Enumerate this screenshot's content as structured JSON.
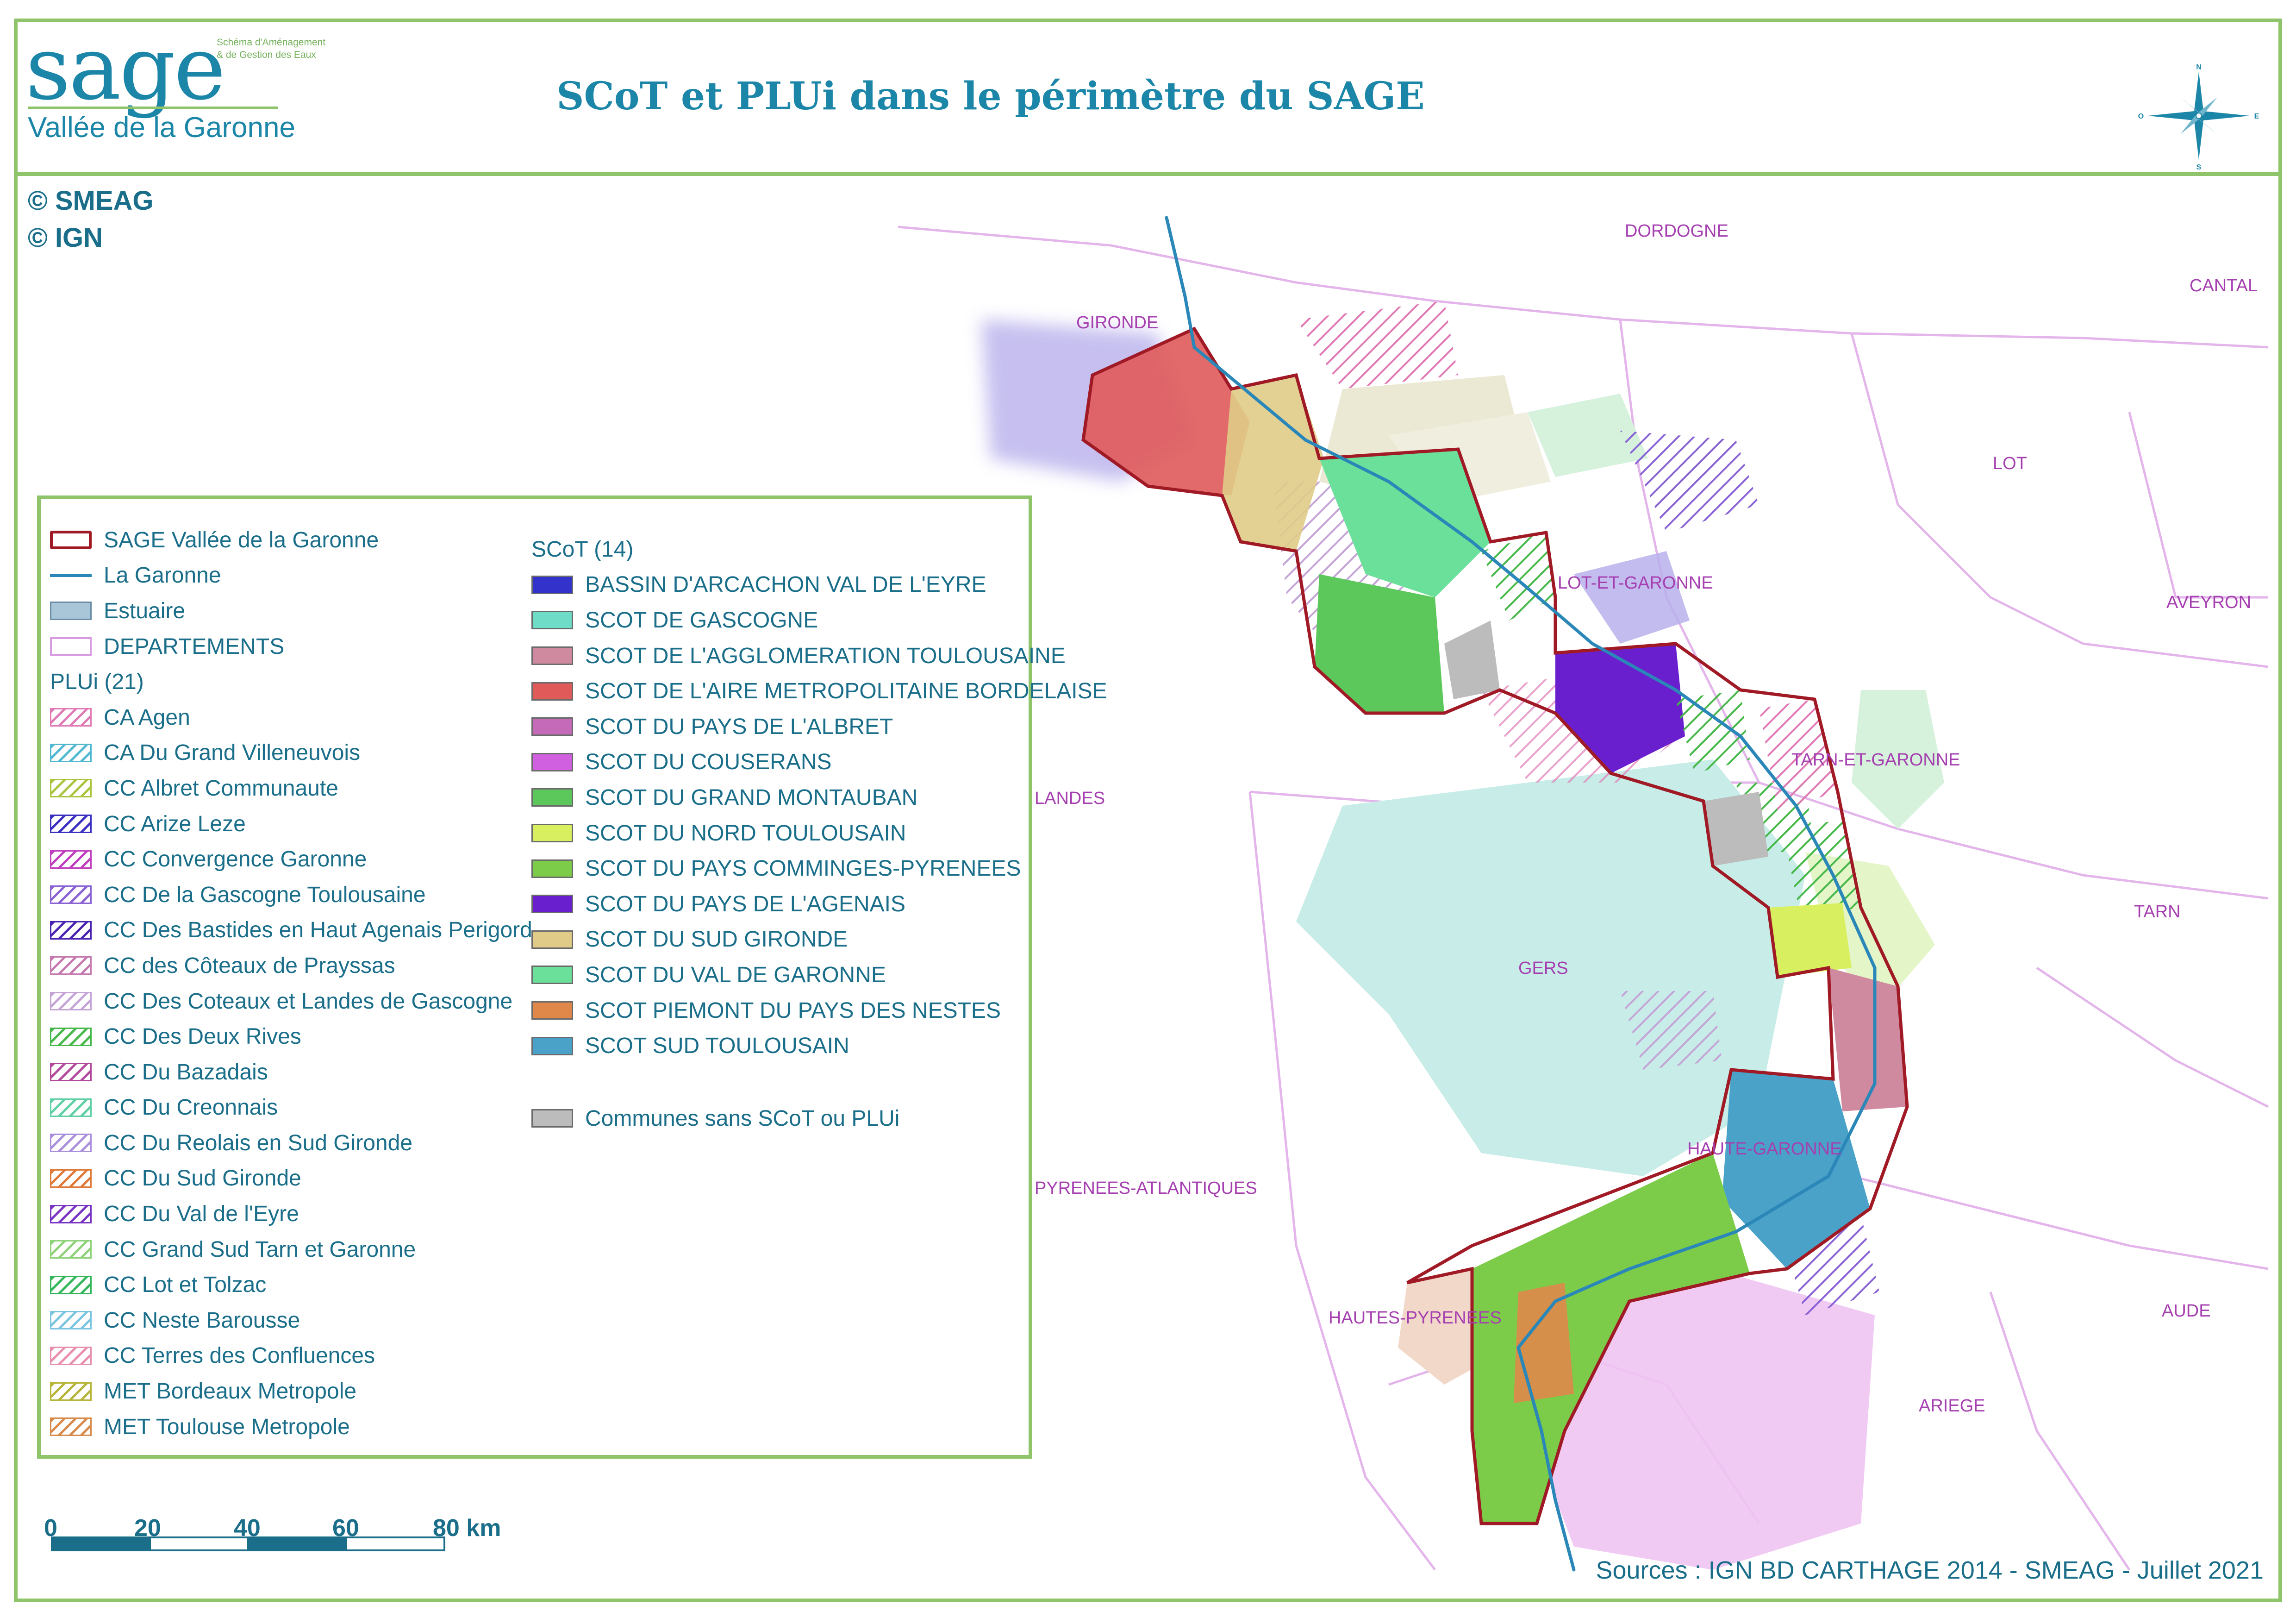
{
  "header": {
    "logo_word": "sage",
    "logo_subtitle": "Schéma d'Aménagement & de Gestion des Eaux",
    "logo_valley": "Vallée de la Garonne",
    "title": "SCoT et PLUi dans le périmètre du SAGE"
  },
  "compass": {
    "n": "N",
    "s": "S",
    "e": "E",
    "w": "O"
  },
  "copyrights": [
    "© SMEAG",
    "© IGN"
  ],
  "departments": [
    "DORDOGNE",
    "CANTAL",
    "GIRONDE",
    "LOT",
    "LOT-ET-GARONNE",
    "AVEYRON",
    "TARN-ET-GARONNE",
    "LANDES",
    "TARN",
    "GERS",
    "HAUTE-GARONNE",
    "PYRENEES-ATLANTIQUES",
    "HAUTES-PYRENEES",
    "AUDE",
    "ARIEGE"
  ],
  "legend": {
    "base_items": [
      {
        "label": "SAGE Vallée de la Garonne",
        "symbol": "sage-outline"
      },
      {
        "label": "La Garonne",
        "symbol": "river-line"
      },
      {
        "label": "Estuaire",
        "symbol": "estuary-fill"
      },
      {
        "label": "DEPARTEMENTS",
        "symbol": "department-outline"
      }
    ],
    "plui_heading": "PLUi (21)",
    "plui_items": [
      {
        "label": "CA Agen",
        "color": "#e07ab5"
      },
      {
        "label": "CA Du Grand Villeneuvois",
        "color": "#4fb8d0"
      },
      {
        "label": "CC Albret Communaute",
        "color": "#a9c53e"
      },
      {
        "label": "CC Arize Leze",
        "color": "#3a2fc0"
      },
      {
        "label": "CC Convergence Garonne",
        "color": "#c03fbf"
      },
      {
        "label": "CC De la Gascogne Toulousaine",
        "color": "#8a63d4"
      },
      {
        "label": "CC Des Bastides en Haut Agenais Perigord",
        "color": "#4a24b0"
      },
      {
        "label": "CC des Côteaux de Prayssas",
        "color": "#c67bb0"
      },
      {
        "label": "CC Des Coteaux et Landes de Gascogne",
        "color": "#c4a3d6"
      },
      {
        "label": "CC Des Deux Rives",
        "color": "#46b84a"
      },
      {
        "label": "CC Du Bazadais",
        "color": "#b1489b"
      },
      {
        "label": "CC Du Creonnais",
        "color": "#5fd0a4"
      },
      {
        "label": "CC Du Reolais en Sud Gironde",
        "color": "#a98fdc"
      },
      {
        "label": "CC Du Sud Gironde",
        "color": "#e07a3a"
      },
      {
        "label": "CC Du Val de l'Eyre",
        "color": "#7a34c4"
      },
      {
        "label": "CC Grand Sud Tarn et Garonne",
        "color": "#8fd27a"
      },
      {
        "label": "CC Lot et Tolzac",
        "color": "#33b65a"
      },
      {
        "label": "CC Neste Barousse",
        "color": "#7ac4e0"
      },
      {
        "label": "CC Terres des Confluences",
        "color": "#e88fae"
      },
      {
        "label": "MET Bordeaux Metropole",
        "color": "#b7b43a"
      },
      {
        "label": "MET Toulouse Metropole",
        "color": "#d88a4a"
      }
    ],
    "scot_heading": "SCoT (14)",
    "scot_items": [
      {
        "label": "BASSIN D'ARCACHON VAL DE L'EYRE",
        "color": "#3333cc"
      },
      {
        "label": "SCOT DE GASCOGNE",
        "color": "#6fdcc8"
      },
      {
        "label": "SCOT DE L'AGGLOMERATION TOULOUSAINE",
        "color": "#d08aa0"
      },
      {
        "label": "SCOT DE L'AIRE METROPOLITAINE BORDELAISE",
        "color": "#e05a5a"
      },
      {
        "label": "SCOT DU  PAYS DE L'ALBRET",
        "color": "#c46ab8"
      },
      {
        "label": "SCOT DU COUSERANS",
        "color": "#d060e0"
      },
      {
        "label": "SCOT DU GRAND MONTAUBAN",
        "color": "#5cc85c"
      },
      {
        "label": "SCOT DU NORD TOULOUSAIN",
        "color": "#d8f060"
      },
      {
        "label": "SCOT DU PAYS COMMINGES-PYRENEES",
        "color": "#7ccc4a"
      },
      {
        "label": "SCOT DU PAYS DE L'AGENAIS",
        "color": "#6a1fcf"
      },
      {
        "label": "SCOT DU SUD GIRONDE",
        "color": "#e0cc88"
      },
      {
        "label": "SCOT DU VAL DE GARONNE",
        "color": "#6ae09a"
      },
      {
        "label": "SCOT PIEMONT DU PAYS DES NESTES",
        "color": "#e0884a"
      },
      {
        "label": "SCOT SUD TOULOUSAIN",
        "color": "#4aa2c8"
      }
    ],
    "no_scot_item": {
      "label": "Communes sans SCoT ou PLUi",
      "color": "#bcbcbc"
    }
  },
  "scalebar": {
    "labels": [
      "0",
      "20",
      "40",
      "60",
      "80 km"
    ]
  },
  "sources": "Sources : IGN BD CARTHAGE 2014 - SMEAG - Juillet 2021",
  "colors": {
    "frame": "#8fc46a",
    "brand_blue": "#1b86a8",
    "dept_label": "#a53fb0",
    "sage_outline": "#a01a26",
    "river": "#2a87b8"
  }
}
